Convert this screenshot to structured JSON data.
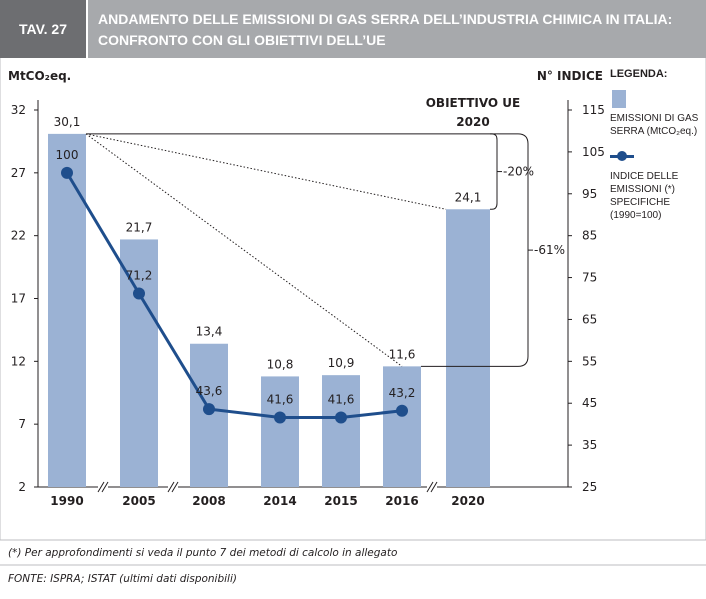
{
  "header": {
    "tag": "TAV. 27",
    "title_lines": [
      "ANDAMENTO DELLE EMISSIONI DI GAS SERRA DELL’INDUSTRIA CHIMICA IN ITALIA:",
      "CONFRONTO CON GLI OBIETTIVI DELL’UE"
    ]
  },
  "chart_data": {
    "type": "bar",
    "categories": [
      "1990",
      "2005",
      "2008",
      "2014",
      "2015",
      "2016",
      "2020"
    ],
    "ylabel": "MtCO₂eq.",
    "y2label": "N° INDICE",
    "ylim": [
      2,
      32
    ],
    "yticks": [
      32,
      27,
      22,
      17,
      12,
      7,
      2
    ],
    "y2lim": [
      25,
      115
    ],
    "y2ticks": [
      115,
      105,
      95,
      85,
      75,
      65,
      55,
      45,
      35,
      25
    ],
    "legend_title": "LEGENDA:",
    "series": [
      {
        "name": "EMISSIONI DI GAS SERRA (MtCO₂eq.)",
        "type": "bar",
        "color": "#9bb2d4",
        "values": [
          30.1,
          21.7,
          13.4,
          10.8,
          10.9,
          11.6,
          24.1
        ],
        "value_labels": [
          "30,1",
          "21,7",
          "13,4",
          "10,8",
          "10,9",
          "11,6",
          "24,1"
        ]
      },
      {
        "name": "INDICE DELLE EMISSIONI (*) SPECIFICHE (1990=100)",
        "type": "line",
        "axis": "y2",
        "color": "#1f4e8c",
        "values": [
          100,
          71.2,
          43.6,
          41.6,
          41.6,
          43.2,
          null
        ],
        "value_labels": [
          "100",
          "71,2",
          "43,6",
          "41,6",
          "41,6",
          "43,2",
          null
        ]
      }
    ],
    "annotations": [
      "OBIETTIVO UE",
      "2020",
      "-20%",
      "-61%"
    ]
  },
  "footnote": "(*) Per approfondimenti si veda il punto 7 dei metodi di calcolo in allegato",
  "source": "FONTE: ISPRA; ISTAT (ultimi dati disponibili)"
}
